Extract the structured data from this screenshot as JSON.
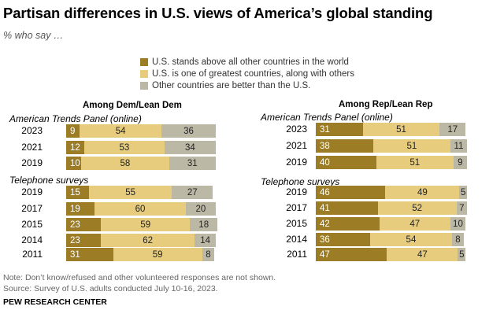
{
  "colors": {
    "above": "#9c7c25",
    "one_of_greatest": "#e7cc7e",
    "others_better": "#bcb8a6"
  },
  "chart_data": {
    "type": "bar",
    "stacked": true,
    "orientation": "horizontal",
    "title": "Partisan differences in U.S. views of America’s global standing",
    "subtitle": "% who say …",
    "legend": [
      "U.S. stands above all other countries in the world",
      "U.S. is one of greatest countries, along with others",
      "Other countries are better than the U.S."
    ],
    "panels": [
      {
        "name": "Among Dem/Lean Dem",
        "sections": [
          {
            "label": "American Trends Panel (online)",
            "rows": [
              {
                "year": "2023",
                "values": [
                  9,
                  54,
                  36
                ]
              },
              {
                "year": "2021",
                "values": [
                  12,
                  53,
                  34
                ]
              },
              {
                "year": "2019",
                "values": [
                  10,
                  58,
                  31
                ]
              }
            ]
          },
          {
            "label": "Telephone surveys",
            "rows": [
              {
                "year": "2019",
                "values": [
                  15,
                  55,
                  27
                ]
              },
              {
                "year": "2017",
                "values": [
                  19,
                  60,
                  20
                ]
              },
              {
                "year": "2015",
                "values": [
                  23,
                  59,
                  18
                ]
              },
              {
                "year": "2014",
                "values": [
                  23,
                  62,
                  14
                ]
              },
              {
                "year": "2011",
                "values": [
                  31,
                  59,
                  8
                ]
              }
            ]
          }
        ]
      },
      {
        "name": "Among Rep/Lean Rep",
        "sections": [
          {
            "label": "American Trends Panel (online)",
            "rows": [
              {
                "year": "2023",
                "values": [
                  31,
                  51,
                  17
                ]
              },
              {
                "year": "2021",
                "values": [
                  38,
                  51,
                  11
                ]
              },
              {
                "year": "2019",
                "values": [
                  40,
                  51,
                  9
                ]
              }
            ]
          },
          {
            "label": "Telephone surveys",
            "rows": [
              {
                "year": "2019",
                "values": [
                  46,
                  49,
                  5
                ]
              },
              {
                "year": "2017",
                "values": [
                  41,
                  52,
                  7
                ]
              },
              {
                "year": "2015",
                "values": [
                  42,
                  47,
                  10
                ]
              },
              {
                "year": "2014",
                "values": [
                  36,
                  54,
                  8
                ]
              },
              {
                "year": "2011",
                "values": [
                  47,
                  47,
                  5
                ]
              }
            ]
          }
        ]
      }
    ]
  },
  "notes": {
    "note": "Note: Don’t know/refused and other volunteered responses are not shown.",
    "source": "Source: Survey of U.S. adults conducted July 10-16, 2023.",
    "org": "PEW RESEARCH CENTER"
  }
}
